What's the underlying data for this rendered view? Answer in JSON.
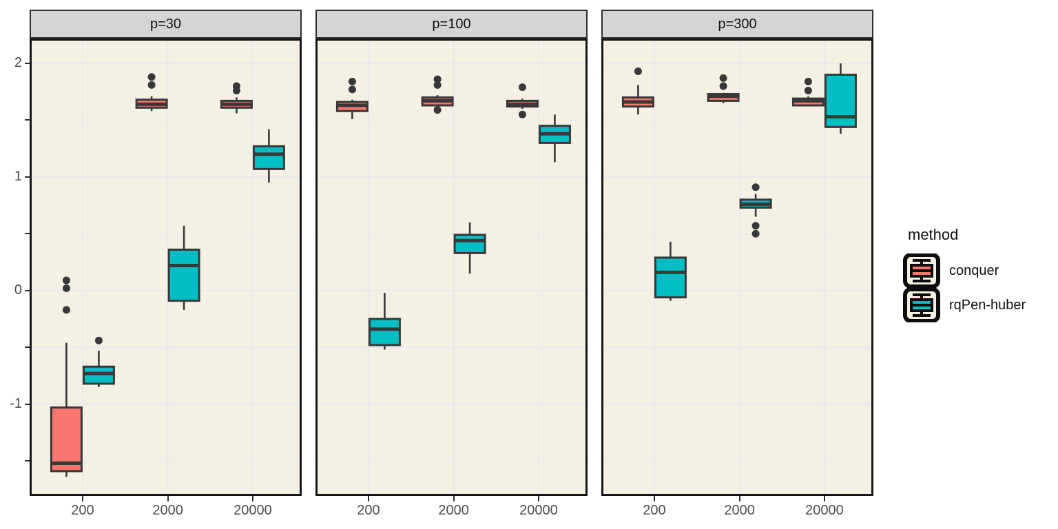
{
  "colors": {
    "conquer": "#f8766d",
    "rqpen_huber": "#00bfc4",
    "panel_bg": "#f4f1e4",
    "grid": "#e9eaec",
    "strip_bg": "#d5d5d5",
    "box_stroke": "#383838",
    "axis_text": "#4d4d4d",
    "frame": "#151515"
  },
  "chart_data": {
    "type": "boxplot",
    "facet_variable": "p",
    "x_ticks": [
      "200",
      "2000",
      "20000"
    ],
    "y_axis": {
      "range": [
        -1.79,
        2.2
      ],
      "labeled_breaks": [
        {
          "value": 2,
          "label": "2"
        },
        {
          "value": 1,
          "label": "1"
        },
        {
          "value": 0,
          "label": "0"
        },
        {
          "value": -1,
          "label": "-1"
        }
      ],
      "minor_breaks": [
        1.5,
        0.5,
        -0.5,
        -1.5
      ],
      "grid": true
    },
    "legend": {
      "title": "method",
      "position": "right",
      "entries": [
        {
          "label": "conquer",
          "color": "#f8766d"
        },
        {
          "label": "rqPen-huber",
          "color": "#00bfc4"
        }
      ]
    },
    "facets": [
      {
        "label": "p=30",
        "boxes": [
          {
            "x": "200",
            "method": "conquer",
            "whisker_low": -1.64,
            "q1": -1.59,
            "median": -1.52,
            "q3": -1.03,
            "whisker_high": -0.46,
            "outliers": [
              0.09,
              0.02,
              -0.17
            ]
          },
          {
            "x": "200",
            "method": "rqPen-huber",
            "whisker_low": -0.85,
            "q1": -0.82,
            "median": -0.73,
            "q3": -0.67,
            "whisker_high": -0.53,
            "outliers": [
              -0.44
            ]
          },
          {
            "x": "2000",
            "method": "conquer",
            "whisker_low": 1.58,
            "q1": 1.61,
            "median": 1.64,
            "q3": 1.68,
            "whisker_high": 1.71,
            "outliers": [
              1.88,
              1.81
            ]
          },
          {
            "x": "2000",
            "method": "rqPen-huber",
            "whisker_low": -0.17,
            "q1": -0.09,
            "median": 0.22,
            "q3": 0.36,
            "whisker_high": 0.57,
            "outliers": []
          },
          {
            "x": "20000",
            "method": "conquer",
            "whisker_low": 1.56,
            "q1": 1.61,
            "median": 1.64,
            "q3": 1.67,
            "whisker_high": 1.7,
            "outliers": [
              1.8,
              1.76
            ]
          },
          {
            "x": "20000",
            "method": "rqPen-huber",
            "whisker_low": 0.95,
            "q1": 1.07,
            "median": 1.2,
            "q3": 1.27,
            "whisker_high": 1.42,
            "outliers": []
          }
        ]
      },
      {
        "label": "p=100",
        "boxes": [
          {
            "x": "200",
            "method": "conquer",
            "whisker_low": 1.51,
            "q1": 1.58,
            "median": 1.63,
            "q3": 1.66,
            "whisker_high": 1.68,
            "outliers": [
              1.84,
              1.77
            ]
          },
          {
            "x": "200",
            "method": "rqPen-huber",
            "whisker_low": -0.52,
            "q1": -0.48,
            "median": -0.34,
            "q3": -0.25,
            "whisker_high": -0.02,
            "outliers": []
          },
          {
            "x": "2000",
            "method": "conquer",
            "whisker_low": 1.61,
            "q1": 1.63,
            "median": 1.67,
            "q3": 1.7,
            "whisker_high": 1.72,
            "outliers": [
              1.86,
              1.81,
              1.59
            ]
          },
          {
            "x": "2000",
            "method": "rqPen-huber",
            "whisker_low": 0.15,
            "q1": 0.33,
            "median": 0.44,
            "q3": 0.49,
            "whisker_high": 0.6,
            "outliers": []
          },
          {
            "x": "20000",
            "method": "conquer",
            "whisker_low": 1.6,
            "q1": 1.62,
            "median": 1.64,
            "q3": 1.67,
            "whisker_high": 1.69,
            "outliers": [
              1.79,
              1.55
            ]
          },
          {
            "x": "20000",
            "method": "rqPen-huber",
            "whisker_low": 1.13,
            "q1": 1.3,
            "median": 1.38,
            "q3": 1.45,
            "whisker_high": 1.55,
            "outliers": []
          }
        ]
      },
      {
        "label": "p=300",
        "boxes": [
          {
            "x": "200",
            "method": "conquer",
            "whisker_low": 1.55,
            "q1": 1.62,
            "median": 1.66,
            "q3": 1.7,
            "whisker_high": 1.81,
            "outliers": [
              1.93
            ]
          },
          {
            "x": "200",
            "method": "rqPen-huber",
            "whisker_low": -0.09,
            "q1": -0.06,
            "median": 0.16,
            "q3": 0.29,
            "whisker_high": 0.43,
            "outliers": []
          },
          {
            "x": "2000",
            "method": "conquer",
            "whisker_low": 1.65,
            "q1": 1.67,
            "median": 1.71,
            "q3": 1.73,
            "whisker_high": 1.74,
            "outliers": [
              1.87,
              1.8
            ]
          },
          {
            "x": "2000",
            "method": "rqPen-huber",
            "whisker_low": 0.65,
            "q1": 0.73,
            "median": 0.76,
            "q3": 0.8,
            "whisker_high": 0.85,
            "outliers": [
              0.91,
              0.57,
              0.5
            ]
          },
          {
            "x": "20000",
            "method": "conquer",
            "whisker_low": 1.62,
            "q1": 1.63,
            "median": 1.67,
            "q3": 1.69,
            "whisker_high": 1.71,
            "outliers": [
              1.84,
              1.76
            ]
          },
          {
            "x": "20000",
            "method": "rqPen-huber",
            "whisker_low": 1.38,
            "q1": 1.44,
            "median": 1.53,
            "q3": 1.9,
            "whisker_high": 2.0,
            "outliers": []
          }
        ]
      }
    ]
  }
}
